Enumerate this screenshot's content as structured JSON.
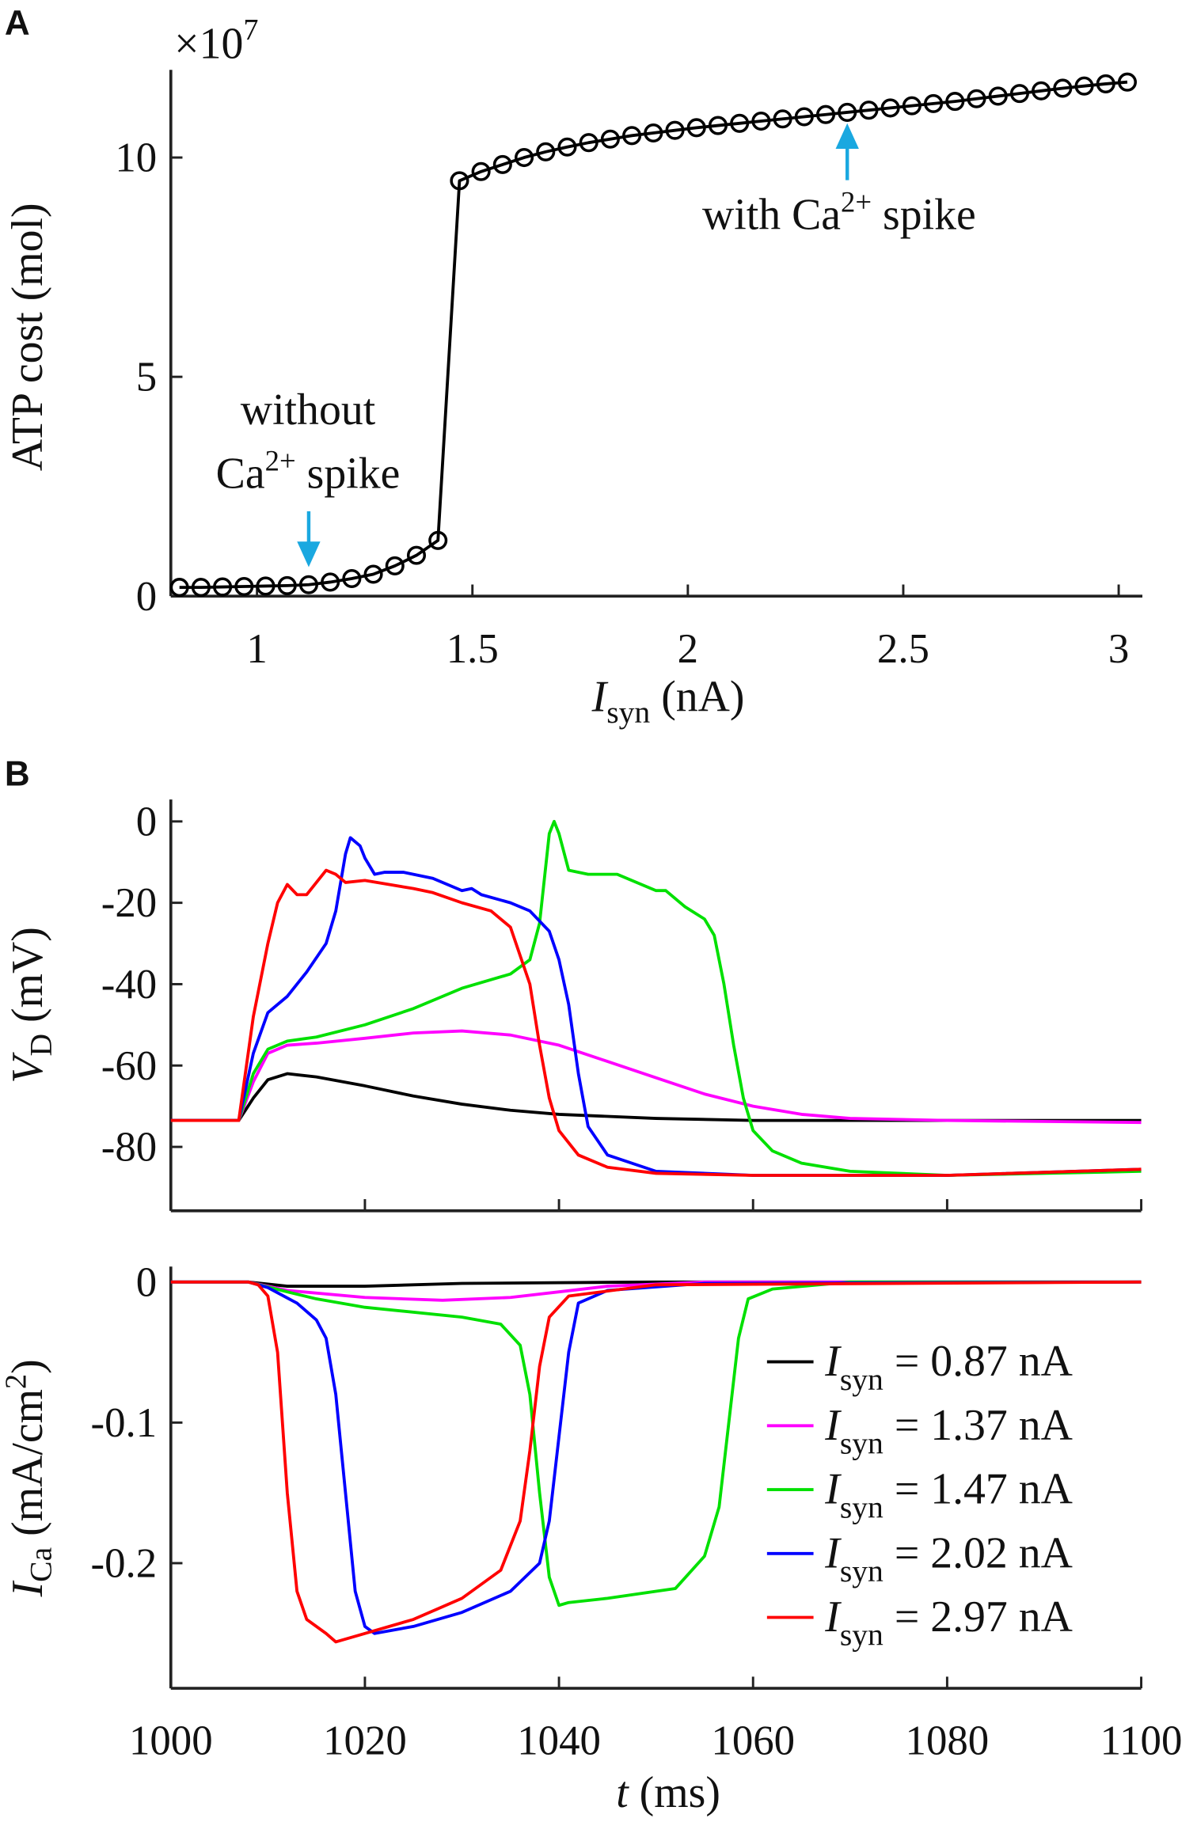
{
  "chart_data": [
    {
      "panel": "A",
      "type": "line",
      "marker": "circle",
      "xlabel": {
        "main": "I",
        "sub": "syn",
        "rest": " (nA)"
      },
      "ylabel": "ATP cost (mol)",
      "y_multiplier": {
        "base": "×10",
        "exp": "7"
      },
      "xlim": [
        0.8,
        3.055
      ],
      "ylim": [
        0,
        12
      ],
      "xticks": [
        1,
        1.5,
        2,
        2.5,
        3
      ],
      "xtick_labels": [
        "1",
        "1.5",
        "2",
        "2.5",
        "3"
      ],
      "yticks": [
        0,
        5,
        10
      ],
      "ytick_labels": [
        "0",
        "5",
        "10"
      ],
      "color": "#000000",
      "x": [
        0.82,
        0.87,
        0.92,
        0.97,
        1.02,
        1.07,
        1.12,
        1.17,
        1.22,
        1.27,
        1.32,
        1.37,
        1.42,
        1.47,
        1.52,
        1.57,
        1.62,
        1.67,
        1.72,
        1.77,
        1.82,
        1.87,
        1.92,
        1.97,
        2.02,
        2.07,
        2.12,
        2.17,
        2.22,
        2.27,
        2.32,
        2.37,
        2.42,
        2.47,
        2.52,
        2.57,
        2.62,
        2.67,
        2.72,
        2.77,
        2.82,
        2.87,
        2.92,
        2.97,
        3.02
      ],
      "values": [
        0.2,
        0.2,
        0.21,
        0.22,
        0.23,
        0.24,
        0.26,
        0.32,
        0.4,
        0.5,
        0.69,
        0.93,
        1.27,
        9.47,
        9.68,
        9.84,
        10.0,
        10.13,
        10.24,
        10.34,
        10.42,
        10.5,
        10.56,
        10.62,
        10.68,
        10.73,
        10.78,
        10.83,
        10.88,
        10.93,
        10.98,
        11.03,
        11.08,
        11.13,
        11.18,
        11.23,
        11.28,
        11.34,
        11.4,
        11.46,
        11.52,
        11.58,
        11.63,
        11.68,
        11.72
      ],
      "annotations": [
        {
          "lines": [
            "without"
          ],
          "ca": "Ca",
          "sup": "2+",
          "tail": " spike",
          "arrow": "down",
          "x": 1.12,
          "color": "#1aa8e0"
        },
        {
          "ca": "with Ca",
          "sup": "2+",
          "tail": " spike",
          "arrow": "up",
          "x": 2.37,
          "color": "#1aa8e0"
        }
      ]
    },
    {
      "panel": "B",
      "type": "line",
      "ylabel": {
        "main": "V",
        "sub": "D",
        "rest": " (mV)"
      },
      "xlim": [
        1000,
        1100
      ],
      "ylim": [
        -95.7,
        5.4
      ],
      "xticks": [
        1000,
        1020,
        1040,
        1060,
        1080,
        1100
      ],
      "yticks": [
        0,
        -20,
        -40,
        -60,
        -80
      ],
      "ytick_labels": [
        "0",
        "-20",
        "-40",
        "-60",
        "-80"
      ],
      "series": [
        {
          "name": "0.87 nA",
          "color": "#000000",
          "points": [
            [
              1000,
              -73.5
            ],
            [
              1007,
              -73.5
            ],
            [
              1008.5,
              -68
            ],
            [
              1010,
              -63.5
            ],
            [
              1012,
              -62
            ],
            [
              1015,
              -62.8
            ],
            [
              1020,
              -65
            ],
            [
              1025,
              -67.5
            ],
            [
              1030,
              -69.5
            ],
            [
              1035,
              -71
            ],
            [
              1040,
              -72
            ],
            [
              1050,
              -73
            ],
            [
              1060,
              -73.5
            ],
            [
              1100,
              -73.5
            ]
          ]
        },
        {
          "name": "1.37 nA",
          "color": "#ff00ff",
          "points": [
            [
              1000,
              -73.5
            ],
            [
              1007,
              -73.5
            ],
            [
              1008.5,
              -64
            ],
            [
              1010,
              -57
            ],
            [
              1012,
              -55
            ],
            [
              1015,
              -54.5
            ],
            [
              1020,
              -53.3
            ],
            [
              1025,
              -52
            ],
            [
              1030,
              -51.5
            ],
            [
              1035,
              -52.5
            ],
            [
              1040,
              -55
            ],
            [
              1045,
              -59
            ],
            [
              1050,
              -63
            ],
            [
              1055,
              -67
            ],
            [
              1060,
              -70
            ],
            [
              1065,
              -72
            ],
            [
              1070,
              -73
            ],
            [
              1080,
              -73.5
            ],
            [
              1100,
              -74
            ]
          ]
        },
        {
          "name": "1.47 nA",
          "color": "#00e000",
          "points": [
            [
              1000,
              -73.5
            ],
            [
              1007,
              -73.5
            ],
            [
              1008.5,
              -62
            ],
            [
              1010,
              -56
            ],
            [
              1012,
              -54
            ],
            [
              1015,
              -53
            ],
            [
              1020,
              -50
            ],
            [
              1025,
              -46
            ],
            [
              1030,
              -41
            ],
            [
              1035,
              -37.5
            ],
            [
              1037,
              -34
            ],
            [
              1038,
              -25
            ],
            [
              1039,
              -3
            ],
            [
              1039.5,
              0
            ],
            [
              1040,
              -3
            ],
            [
              1041,
              -12
            ],
            [
              1043,
              -13
            ],
            [
              1046,
              -13
            ],
            [
              1050,
              -17
            ],
            [
              1051,
              -17
            ],
            [
              1053,
              -21
            ],
            [
              1055,
              -24
            ],
            [
              1056,
              -28
            ],
            [
              1057,
              -40
            ],
            [
              1058,
              -55
            ],
            [
              1059,
              -68
            ],
            [
              1060,
              -76
            ],
            [
              1062,
              -81
            ],
            [
              1065,
              -84
            ],
            [
              1070,
              -86
            ],
            [
              1080,
              -87
            ],
            [
              1100,
              -86
            ]
          ]
        },
        {
          "name": "2.02 nA",
          "color": "#0000ff",
          "points": [
            [
              1000,
              -73.5
            ],
            [
              1007,
              -73.5
            ],
            [
              1008.5,
              -57
            ],
            [
              1010,
              -47
            ],
            [
              1012,
              -43
            ],
            [
              1014,
              -37
            ],
            [
              1016,
              -30
            ],
            [
              1017,
              -22
            ],
            [
              1018,
              -8
            ],
            [
              1018.5,
              -4
            ],
            [
              1019.5,
              -6
            ],
            [
              1020,
              -9
            ],
            [
              1021,
              -13
            ],
            [
              1022,
              -12.5
            ],
            [
              1024,
              -12.5
            ],
            [
              1027,
              -14
            ],
            [
              1030,
              -17
            ],
            [
              1031,
              -16.5
            ],
            [
              1032,
              -18
            ],
            [
              1035,
              -20
            ],
            [
              1037,
              -22
            ],
            [
              1039,
              -27
            ],
            [
              1040,
              -34
            ],
            [
              1041,
              -45
            ],
            [
              1042,
              -62
            ],
            [
              1043,
              -75
            ],
            [
              1045,
              -82
            ],
            [
              1050,
              -86
            ],
            [
              1060,
              -87
            ],
            [
              1080,
              -87
            ],
            [
              1100,
              -85.5
            ]
          ]
        },
        {
          "name": "2.97 nA",
          "color": "#ff0000",
          "points": [
            [
              1000,
              -73.5
            ],
            [
              1007,
              -73.5
            ],
            [
              1008.5,
              -48
            ],
            [
              1010,
              -30
            ],
            [
              1011,
              -20
            ],
            [
              1012,
              -15.5
            ],
            [
              1013,
              -18
            ],
            [
              1014,
              -18
            ],
            [
              1016,
              -12
            ],
            [
              1017,
              -13
            ],
            [
              1018,
              -15
            ],
            [
              1020,
              -14.5
            ],
            [
              1025,
              -16.5
            ],
            [
              1027,
              -17.5
            ],
            [
              1030,
              -20
            ],
            [
              1033,
              -22
            ],
            [
              1035,
              -26
            ],
            [
              1037,
              -40
            ],
            [
              1038,
              -55
            ],
            [
              1039,
              -68
            ],
            [
              1040,
              -76
            ],
            [
              1042,
              -82
            ],
            [
              1045,
              -85
            ],
            [
              1050,
              -86.5
            ],
            [
              1060,
              -87
            ],
            [
              1080,
              -87
            ],
            [
              1100,
              -85.5
            ]
          ]
        }
      ]
    },
    {
      "panel": "B-bottom",
      "type": "line",
      "xlabel": {
        "main": "t",
        "rest": " (ms)"
      },
      "ylabel": {
        "main": "I",
        "sub": "Ca",
        "rest": " (mA/cm",
        "sup": "2",
        "end": ")"
      },
      "xlim": [
        1000,
        1100
      ],
      "ylim": [
        -0.289,
        0.011
      ],
      "xticks": [
        1000,
        1020,
        1040,
        1060,
        1080,
        1100
      ],
      "xtick_labels": [
        "1000",
        "1020",
        "1040",
        "1060",
        "1080",
        "1100"
      ],
      "yticks": [
        0,
        -0.1,
        -0.2
      ],
      "ytick_labels": [
        "0",
        "-0.1",
        "-0.2"
      ],
      "legend": {
        "placement": "bottom-right",
        "prefix": "I",
        "sub": "syn",
        "eq": "= "
      },
      "series": [
        {
          "name": "0.87 nA",
          "color": "#000000",
          "points": [
            [
              1000,
              0
            ],
            [
              1008,
              0
            ],
            [
              1012,
              -0.003
            ],
            [
              1020,
              -0.003
            ],
            [
              1030,
              -0.001
            ],
            [
              1050,
              0
            ],
            [
              1100,
              0
            ]
          ]
        },
        {
          "name": "1.37 nA",
          "color": "#ff00ff",
          "points": [
            [
              1000,
              0
            ],
            [
              1008,
              0
            ],
            [
              1012,
              -0.006
            ],
            [
              1020,
              -0.011
            ],
            [
              1028,
              -0.013
            ],
            [
              1035,
              -0.011
            ],
            [
              1040,
              -0.007
            ],
            [
              1045,
              -0.003
            ],
            [
              1055,
              0
            ],
            [
              1100,
              0
            ]
          ]
        },
        {
          "name": "1.47 nA",
          "color": "#00e000",
          "points": [
            [
              1000,
              0
            ],
            [
              1008,
              0
            ],
            [
              1012,
              -0.007
            ],
            [
              1015,
              -0.012
            ],
            [
              1020,
              -0.018
            ],
            [
              1030,
              -0.025
            ],
            [
              1034,
              -0.03
            ],
            [
              1036,
              -0.045
            ],
            [
              1037,
              -0.08
            ],
            [
              1038,
              -0.15
            ],
            [
              1039,
              -0.21
            ],
            [
              1040,
              -0.23
            ],
            [
              1041,
              -0.228
            ],
            [
              1045,
              -0.225
            ],
            [
              1050,
              -0.22
            ],
            [
              1052,
              -0.218
            ],
            [
              1055,
              -0.195
            ],
            [
              1056.5,
              -0.16
            ],
            [
              1057.5,
              -0.1
            ],
            [
              1058.5,
              -0.04
            ],
            [
              1059.5,
              -0.012
            ],
            [
              1062,
              -0.005
            ],
            [
              1070,
              0
            ],
            [
              1100,
              0
            ]
          ]
        },
        {
          "name": "2.02 nA",
          "color": "#0000ff",
          "points": [
            [
              1000,
              0
            ],
            [
              1008,
              0
            ],
            [
              1010,
              -0.004
            ],
            [
              1013,
              -0.015
            ],
            [
              1015,
              -0.027
            ],
            [
              1016,
              -0.04
            ],
            [
              1017,
              -0.08
            ],
            [
              1018,
              -0.15
            ],
            [
              1019,
              -0.22
            ],
            [
              1020,
              -0.245
            ],
            [
              1021,
              -0.25
            ],
            [
              1025,
              -0.245
            ],
            [
              1030,
              -0.235
            ],
            [
              1035,
              -0.22
            ],
            [
              1038,
              -0.2
            ],
            [
              1039,
              -0.17
            ],
            [
              1040,
              -0.11
            ],
            [
              1041,
              -0.05
            ],
            [
              1042,
              -0.015
            ],
            [
              1045,
              -0.006
            ],
            [
              1055,
              -0.001
            ],
            [
              1100,
              0
            ]
          ]
        },
        {
          "name": "2.97 nA",
          "color": "#ff0000",
          "points": [
            [
              1000,
              0
            ],
            [
              1008,
              0
            ],
            [
              1009,
              -0.002
            ],
            [
              1010,
              -0.01
            ],
            [
              1011,
              -0.05
            ],
            [
              1012,
              -0.15
            ],
            [
              1013,
              -0.22
            ],
            [
              1014,
              -0.24
            ],
            [
              1016,
              -0.25
            ],
            [
              1017,
              -0.256
            ],
            [
              1020,
              -0.25
            ],
            [
              1025,
              -0.24
            ],
            [
              1030,
              -0.225
            ],
            [
              1034,
              -0.205
            ],
            [
              1036,
              -0.17
            ],
            [
              1037,
              -0.12
            ],
            [
              1038,
              -0.06
            ],
            [
              1039,
              -0.025
            ],
            [
              1041,
              -0.01
            ],
            [
              1050,
              -0.002
            ],
            [
              1100,
              0
            ]
          ]
        }
      ]
    }
  ],
  "panel_labels": [
    "A",
    "B"
  ]
}
